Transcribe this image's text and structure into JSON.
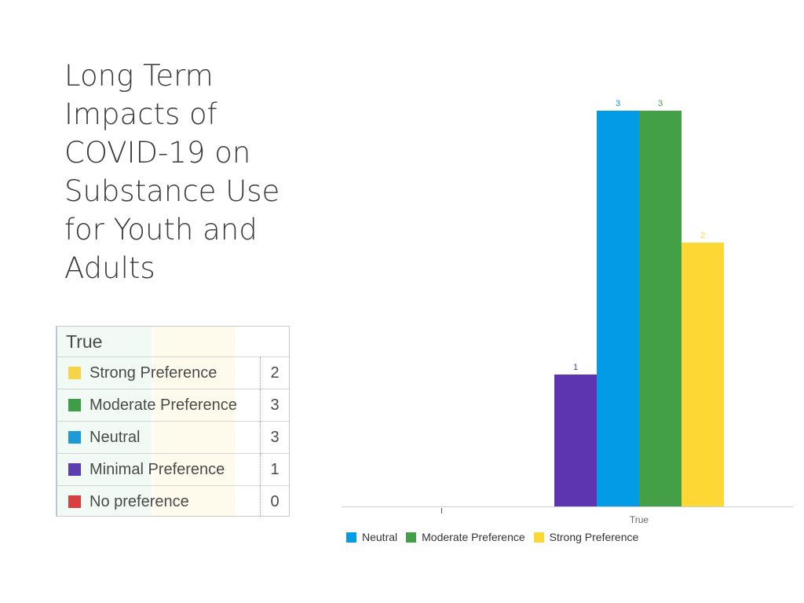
{
  "slide": {
    "title_lines": [
      "Long Term",
      "Impacts of",
      "COVID-19 on",
      "Substance Use",
      "for Youth and",
      "Adults"
    ]
  },
  "legend_table": {
    "header": "True",
    "rows": [
      {
        "label": "Strong Preference",
        "count": "2",
        "color": "#F5D547"
      },
      {
        "label": "Moderate Preference",
        "count": "3",
        "color": "#3E9E46"
      },
      {
        "label": "Neutral",
        "count": "3",
        "color": "#1E9AD6"
      },
      {
        "label": "Minimal Preference",
        "count": "1",
        "color": "#5B3FAE"
      },
      {
        "label": "No preference",
        "count": "0",
        "color": "#D93F3F"
      }
    ]
  },
  "chart_data": {
    "type": "bar",
    "categories": [
      "True"
    ],
    "series": [
      {
        "name": "",
        "values": [
          1
        ],
        "color": "#5E35B1"
      },
      {
        "name": "Neutral",
        "values": [
          3
        ],
        "color": "#039BE5"
      },
      {
        "name": "Moderate Preference",
        "values": [
          3
        ],
        "color": "#43A047"
      },
      {
        "name": "Strong Preference",
        "values": [
          2
        ],
        "color": "#FDD835"
      }
    ],
    "data_labels": [
      "1",
      "3",
      "3",
      "2"
    ],
    "ylim": [
      0,
      3
    ],
    "grid": false,
    "legend_position": "bottom-left",
    "legend": [
      {
        "label": "Neutral",
        "color": "#039BE5"
      },
      {
        "label": "Moderate Preference",
        "color": "#43A047"
      },
      {
        "label": "Strong Preference",
        "color": "#FDD835"
      }
    ]
  }
}
